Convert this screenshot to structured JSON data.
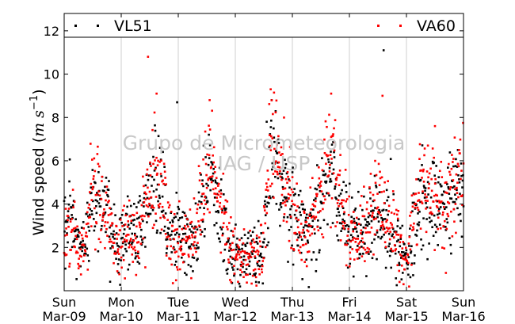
{
  "chart_data": {
    "type": "scatter",
    "title": "",
    "xlabel": "",
    "ylabel_text": "Wind speed (",
    "ylabel_unit_base": "m s",
    "ylabel_unit_exp": "−1",
    "ylabel_close": ")",
    "xlim": [
      0,
      7
    ],
    "ylim": [
      0,
      12.8
    ],
    "yticks": [
      2,
      4,
      6,
      8,
      10,
      12
    ],
    "x_ticks": [
      {
        "day": "Sun",
        "date": "Mar-09"
      },
      {
        "day": "Mon",
        "date": "Mar-10"
      },
      {
        "day": "Tue",
        "date": "Mar-11"
      },
      {
        "day": "Wed",
        "date": "Mar-12"
      },
      {
        "day": "Thu",
        "date": "Mar-13"
      },
      {
        "day": "Fri",
        "date": "Mar-14"
      },
      {
        "day": "Sat",
        "date": "Mar-15"
      },
      {
        "day": "Sun",
        "date": "Mar-16"
      }
    ],
    "grid": "vertical",
    "legend_position": "top",
    "watermark_line1": "Grupo de Micrometeorologia",
    "watermark_line2": "IAG / USP",
    "series": [
      {
        "name": "VL51",
        "color": "#000000",
        "marker": "square",
        "profile": [
          [
            0.0,
            2.8
          ],
          [
            0.15,
            3.2
          ],
          [
            0.25,
            2.0
          ],
          [
            0.35,
            1.6
          ],
          [
            0.45,
            3.8
          ],
          [
            0.55,
            4.1
          ],
          [
            0.65,
            4.0
          ],
          [
            0.75,
            3.6
          ],
          [
            0.85,
            2.4
          ],
          [
            0.95,
            1.8
          ],
          [
            1.05,
            2.5
          ],
          [
            1.15,
            2.8
          ],
          [
            1.25,
            2.4
          ],
          [
            1.4,
            3.2
          ],
          [
            1.5,
            4.3
          ],
          [
            1.6,
            5.5
          ],
          [
            1.7,
            4.6
          ],
          [
            1.8,
            3.0
          ],
          [
            1.9,
            2.5
          ],
          [
            2.0,
            2.4
          ],
          [
            2.15,
            2.0
          ],
          [
            2.3,
            2.6
          ],
          [
            2.45,
            4.2
          ],
          [
            2.55,
            5.2
          ],
          [
            2.65,
            4.4
          ],
          [
            2.8,
            3.0
          ],
          [
            2.9,
            2.0
          ],
          [
            3.0,
            1.6
          ],
          [
            3.15,
            1.5
          ],
          [
            3.3,
            1.6
          ],
          [
            3.4,
            1.4
          ],
          [
            3.5,
            1.8
          ],
          [
            3.6,
            5.6
          ],
          [
            3.7,
            6.7
          ],
          [
            3.8,
            4.9
          ],
          [
            3.95,
            3.7
          ],
          [
            4.1,
            3.3
          ],
          [
            4.25,
            2.8
          ],
          [
            4.4,
            3.5
          ],
          [
            4.5,
            4.2
          ],
          [
            4.6,
            5.4
          ],
          [
            4.7,
            5.6
          ],
          [
            4.8,
            4.5
          ],
          [
            4.9,
            3.8
          ],
          [
            5.0,
            2.7
          ],
          [
            5.15,
            2.5
          ],
          [
            5.3,
            2.9
          ],
          [
            5.45,
            3.4
          ],
          [
            5.55,
            3.6
          ],
          [
            5.65,
            3.2
          ],
          [
            5.75,
            3.0
          ],
          [
            5.85,
            2.4
          ],
          [
            5.95,
            1.4
          ],
          [
            6.05,
            1.8
          ],
          [
            6.15,
            3.6
          ],
          [
            6.3,
            4.2
          ],
          [
            6.45,
            3.8
          ],
          [
            6.6,
            3.4
          ],
          [
            6.75,
            3.9
          ],
          [
            6.9,
            4.8
          ],
          [
            7.0,
            5.0
          ]
        ],
        "outliers": [
          [
            1.98,
            8.7
          ],
          [
            5.6,
            11.1
          ],
          [
            3.55,
            7.8
          ]
        ]
      },
      {
        "name": "VA60",
        "color": "#ff0000",
        "marker": "square",
        "profile": [
          [
            0.0,
            2.6
          ],
          [
            0.15,
            3.0
          ],
          [
            0.25,
            1.8
          ],
          [
            0.35,
            1.5
          ],
          [
            0.45,
            4.2
          ],
          [
            0.55,
            4.5
          ],
          [
            0.65,
            4.3
          ],
          [
            0.75,
            3.4
          ],
          [
            0.85,
            2.2
          ],
          [
            0.95,
            1.6
          ],
          [
            1.05,
            2.3
          ],
          [
            1.15,
            2.6
          ],
          [
            1.25,
            2.2
          ],
          [
            1.4,
            3.4
          ],
          [
            1.5,
            4.6
          ],
          [
            1.6,
            5.9
          ],
          [
            1.7,
            5.0
          ],
          [
            1.8,
            3.1
          ],
          [
            1.9,
            2.3
          ],
          [
            2.0,
            2.2
          ],
          [
            2.15,
            2.0
          ],
          [
            2.3,
            2.8
          ],
          [
            2.45,
            4.8
          ],
          [
            2.55,
            5.6
          ],
          [
            2.65,
            4.8
          ],
          [
            2.8,
            3.2
          ],
          [
            2.9,
            2.0
          ],
          [
            3.0,
            1.6
          ],
          [
            3.15,
            1.6
          ],
          [
            3.3,
            1.8
          ],
          [
            3.4,
            1.6
          ],
          [
            3.5,
            2.2
          ],
          [
            3.6,
            6.0
          ],
          [
            3.7,
            7.2
          ],
          [
            3.8,
            5.2
          ],
          [
            3.95,
            3.9
          ],
          [
            4.1,
            3.2
          ],
          [
            4.25,
            2.6
          ],
          [
            4.4,
            3.7
          ],
          [
            4.5,
            4.5
          ],
          [
            4.6,
            6.2
          ],
          [
            4.7,
            6.4
          ],
          [
            4.8,
            4.8
          ],
          [
            4.9,
            3.9
          ],
          [
            5.0,
            2.6
          ],
          [
            5.15,
            2.4
          ],
          [
            5.3,
            3.0
          ],
          [
            5.45,
            3.8
          ],
          [
            5.55,
            4.2
          ],
          [
            5.65,
            3.4
          ],
          [
            5.75,
            3.0
          ],
          [
            5.85,
            2.3
          ],
          [
            5.95,
            1.3
          ],
          [
            6.05,
            1.9
          ],
          [
            6.15,
            4.2
          ],
          [
            6.3,
            5.0
          ],
          [
            6.45,
            4.4
          ],
          [
            6.6,
            3.8
          ],
          [
            6.75,
            4.4
          ],
          [
            6.9,
            5.4
          ],
          [
            7.0,
            5.6
          ]
        ],
        "outliers": [
          [
            1.47,
            10.8
          ],
          [
            1.62,
            9.1
          ],
          [
            3.62,
            9.3
          ],
          [
            4.68,
            9.1
          ],
          [
            5.58,
            9.0
          ],
          [
            2.55,
            8.8
          ],
          [
            6.5,
            7.6
          ]
        ]
      }
    ]
  }
}
